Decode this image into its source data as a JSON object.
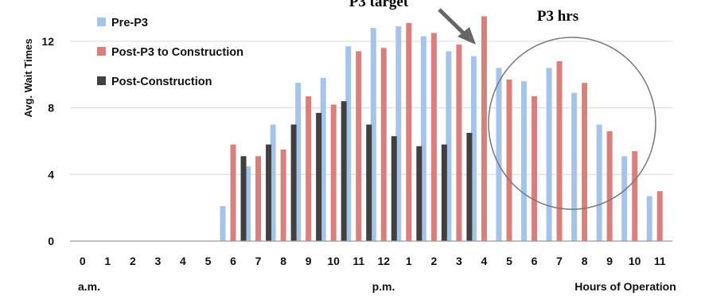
{
  "chart_data": {
    "type": "bar",
    "ylabel": "Avg. Wait Times",
    "xlabel": "Hours of Operation",
    "ylim": [
      0,
      14
    ],
    "yticks": [
      0,
      4,
      8,
      12
    ],
    "grid": true,
    "legend_position": "top-left",
    "categories": [
      "0",
      "1",
      "2",
      "3",
      "4",
      "5",
      "6",
      "7",
      "8",
      "9",
      "10",
      "11",
      "12",
      "1",
      "2",
      "3",
      "4",
      "5",
      "6",
      "7",
      "8",
      "9",
      "10",
      "11"
    ],
    "period_labels": {
      "am": "a.m.",
      "pm": "p.m."
    },
    "series": [
      {
        "name": "Pre-P3",
        "color": "#a6c4ea",
        "values": [
          null,
          null,
          null,
          null,
          null,
          null,
          2.1,
          4.5,
          7.0,
          9.5,
          9.8,
          11.7,
          12.8,
          12.9,
          12.3,
          11.4,
          11.1,
          10.4,
          9.6,
          10.4,
          8.9,
          7.0,
          5.1,
          2.7
        ]
      },
      {
        "name": "Post-P3 to Construction",
        "color": "#d9807c",
        "values": [
          null,
          null,
          null,
          null,
          null,
          null,
          5.8,
          5.1,
          5.5,
          8.7,
          8.2,
          11.4,
          11.6,
          13.1,
          12.5,
          11.8,
          13.5,
          9.7,
          8.7,
          10.8,
          9.5,
          6.6,
          5.4,
          3.0
        ]
      },
      {
        "name": "Post-Construction",
        "color": "#404040",
        "values": [
          null,
          null,
          null,
          null,
          null,
          null,
          5.1,
          5.8,
          7.0,
          7.7,
          8.4,
          7.0,
          6.3,
          5.7,
          5.8,
          6.5,
          null,
          null,
          null,
          null,
          null,
          null,
          null,
          null
        ]
      }
    ],
    "annotations": {
      "target": "P3 target",
      "hours": "P3 hrs"
    }
  }
}
